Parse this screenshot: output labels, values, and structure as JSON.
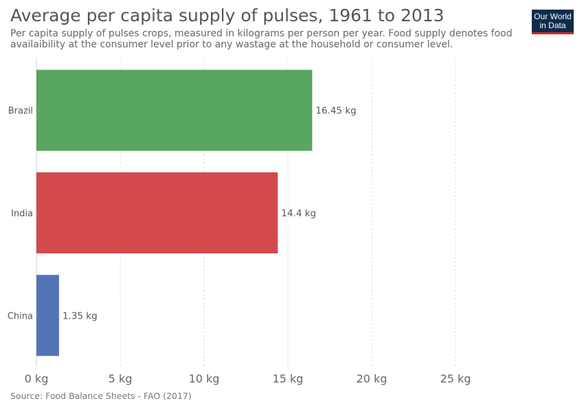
{
  "header": {
    "title": "Average per capita supply of pulses, 1961 to 2013",
    "subtitle": "Per capita supply of pulses crops, measured in kilograms per person per year. Food supply denotes food availaibility at the consumer level prior to any wastage at the household or consumer level."
  },
  "logo": {
    "line1": "Our World",
    "line2": "in Data"
  },
  "footer": {
    "source": "Source: Food Balance Sheets - FAO (2017)"
  },
  "chart_data": {
    "type": "bar",
    "orientation": "horizontal",
    "categories": [
      "Brazil",
      "India",
      "China"
    ],
    "values": [
      16.45,
      14.4,
      1.35
    ],
    "value_labels": [
      "16.45 kg",
      "14.4 kg",
      "1.35 kg"
    ],
    "colors": [
      "#4fa157",
      "#d13f42",
      "#4a6eb4"
    ],
    "xlim": [
      0,
      28
    ],
    "xticks": [
      0,
      5,
      10,
      15,
      20,
      25
    ],
    "xtick_labels": [
      "0 kg",
      "5 kg",
      "10 kg",
      "15 kg",
      "20 kg",
      "25 kg"
    ],
    "grid": "vertical-dashed"
  }
}
